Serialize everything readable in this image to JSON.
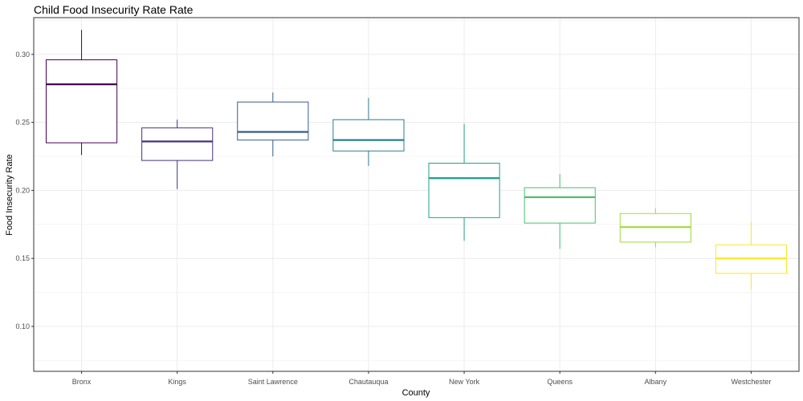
{
  "chart_data": {
    "type": "boxplot",
    "title": "Child Food Insecurity Rate Rate",
    "xlabel": "County",
    "ylabel": "Food Insecurity Rate",
    "ylim": [
      0.067,
      0.327
    ],
    "yticks": [
      0.1,
      0.15,
      0.2,
      0.25,
      0.3
    ],
    "ytick_labels": [
      "0.10",
      "0.15",
      "0.20",
      "0.25",
      "0.30"
    ],
    "grid": true,
    "legend": "none",
    "categories": [
      "Bronx",
      "Kings",
      "Saint Lawrence",
      "Chautauqua",
      "New York",
      "Queens",
      "Albany",
      "Westchester"
    ],
    "boxes": [
      {
        "category": "Bronx",
        "min": 0.226,
        "q1": 0.235,
        "median": 0.278,
        "q3": 0.296,
        "max": 0.318,
        "color": "#440154"
      },
      {
        "category": "Kings",
        "min": 0.201,
        "q1": 0.222,
        "median": 0.236,
        "q3": 0.246,
        "max": 0.252,
        "color": "#46337e"
      },
      {
        "category": "Saint Lawrence",
        "min": 0.225,
        "q1": 0.237,
        "median": 0.243,
        "q3": 0.265,
        "max": 0.272,
        "color": "#365c8d"
      },
      {
        "category": "Chautauqua",
        "min": 0.218,
        "q1": 0.229,
        "median": 0.237,
        "q3": 0.252,
        "max": 0.268,
        "color": "#277f8e"
      },
      {
        "category": "New York",
        "min": 0.163,
        "q1": 0.18,
        "median": 0.209,
        "q3": 0.22,
        "max": 0.249,
        "color": "#1fa187"
      },
      {
        "category": "Queens",
        "min": 0.157,
        "q1": 0.176,
        "median": 0.195,
        "q3": 0.202,
        "max": 0.212,
        "color": "#4ac16d"
      },
      {
        "category": "Albany",
        "min": 0.158,
        "q1": 0.162,
        "median": 0.173,
        "q3": 0.183,
        "max": 0.187,
        "color": "#a0da39"
      },
      {
        "category": "Westchester",
        "min": 0.127,
        "q1": 0.139,
        "median": 0.15,
        "q3": 0.16,
        "max": 0.177,
        "color": "#fde725"
      }
    ]
  }
}
